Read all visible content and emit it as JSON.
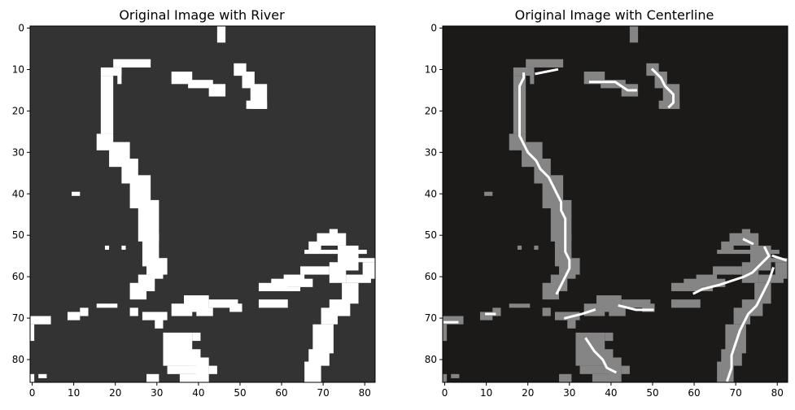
{
  "chart_data": [
    {
      "type": "heatmap",
      "title": "Original Image with River",
      "xlim": [
        0,
        82
      ],
      "ylim": [
        85,
        0
      ],
      "x_ticks": [
        0,
        10,
        20,
        30,
        40,
        50,
        60,
        70,
        80
      ],
      "y_ticks": [
        0,
        10,
        20,
        30,
        40,
        50,
        60,
        70,
        80
      ],
      "grid": false,
      "colors": {
        "background": "#333333",
        "river": "#ffffff"
      }
    },
    {
      "type": "heatmap",
      "title": "Original Image with Centerline",
      "xlim": [
        0,
        82
      ],
      "ylim": [
        85,
        0
      ],
      "x_ticks": [
        0,
        10,
        20,
        30,
        40,
        50,
        60,
        70,
        80
      ],
      "y_ticks": [
        0,
        10,
        20,
        30,
        40,
        50,
        60,
        70,
        80
      ],
      "grid": false,
      "colors": {
        "background": "#1c1a19",
        "river": "#858585",
        "centerline": "#ffffff"
      }
    }
  ]
}
